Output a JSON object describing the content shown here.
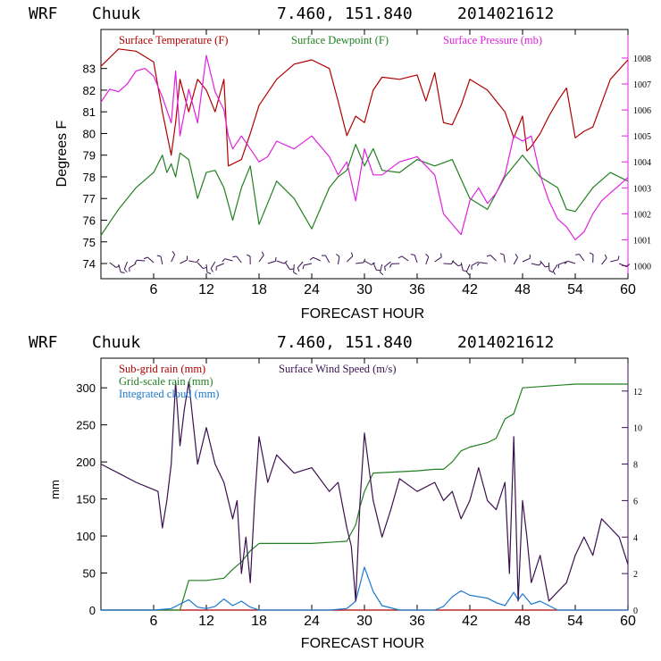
{
  "chart_data": [
    {
      "type": "line",
      "header": {
        "model": "WRF",
        "station": "Chuuk",
        "coords": "7.460, 151.840",
        "init": "2014021612"
      },
      "xlabel": "FORECAST HOUR",
      "ylabel": "Degrees F",
      "x_ticks": [
        "6",
        "12",
        "18",
        "24",
        "30",
        "36",
        "42",
        "48",
        "54",
        "60"
      ],
      "xlim": [
        0,
        60
      ],
      "ylim": [
        73.3,
        84.8
      ],
      "y_ticks": [
        "74",
        "75",
        "76",
        "77",
        "78",
        "79",
        "80",
        "81",
        "82",
        "83"
      ],
      "y2lim": [
        999.5,
        1009.1
      ],
      "y2_ticks": [
        "1000",
        "1001",
        "1002",
        "1003",
        "1004",
        "1005",
        "1006",
        "1007",
        "1008"
      ],
      "series": [
        {
          "name": "Surface Temperature (F)",
          "color": "#b00000",
          "axis": "left",
          "x": [
            0,
            2,
            4,
            6,
            7,
            8,
            8.5,
            9,
            10,
            11,
            12,
            13,
            14,
            14.5,
            15,
            16,
            17,
            18,
            20,
            22,
            24,
            26,
            27,
            28,
            29,
            30,
            31,
            32,
            34,
            36,
            37,
            38,
            39,
            40,
            41,
            42,
            44,
            46,
            47,
            48,
            48.5,
            49,
            50,
            51,
            52,
            53,
            54,
            55,
            56,
            58,
            60
          ],
          "y": [
            83.1,
            83.9,
            83.8,
            83.3,
            81,
            79,
            80.5,
            82.5,
            81,
            82.5,
            82,
            81,
            82.5,
            78.5,
            78.6,
            78.8,
            80,
            81.3,
            82.5,
            83.2,
            83.4,
            83,
            81.5,
            79.9,
            80.8,
            80.5,
            82,
            82.6,
            82.5,
            82.7,
            81.5,
            82.8,
            80.5,
            80.4,
            81.3,
            82.5,
            82,
            81,
            79.8,
            80.8,
            79.2,
            79.4,
            80,
            80.8,
            81.5,
            82.1,
            79.8,
            80.1,
            80.3,
            82.5,
            83.4
          ]
        },
        {
          "name": "Surface Dewpoint (F)",
          "color": "#208020",
          "axis": "left",
          "x": [
            0,
            2,
            4,
            6,
            7,
            7.5,
            8,
            8.5,
            9,
            10,
            11,
            12,
            13,
            14,
            15,
            16,
            17,
            18,
            20,
            22,
            24,
            26,
            27,
            28,
            29,
            30,
            31,
            32,
            34,
            36,
            38,
            40,
            42,
            44,
            46,
            48,
            50,
            52,
            53,
            54,
            56,
            58,
            60
          ],
          "y": [
            75.3,
            76.5,
            77.5,
            78.2,
            79,
            78.2,
            78.6,
            78,
            79.1,
            78.8,
            77,
            78.2,
            78.3,
            77.5,
            76,
            77.5,
            78.5,
            75.8,
            77.8,
            77,
            75.6,
            77.5,
            78,
            78.3,
            79.5,
            78.5,
            79.3,
            78.3,
            78.2,
            78.8,
            78.5,
            78.8,
            77,
            76.5,
            78,
            79,
            78,
            77.5,
            76.5,
            76.4,
            77.5,
            78.2,
            77.8
          ]
        },
        {
          "name": "Surface Pressure (mb)",
          "color": "#e020e0",
          "axis": "right",
          "x": [
            0,
            1,
            2,
            3,
            4,
            5,
            6,
            7,
            8,
            8.5,
            9,
            10,
            11,
            12,
            13,
            14,
            14.5,
            15,
            16,
            17,
            18,
            19,
            20,
            22,
            24,
            26,
            27,
            28,
            29,
            30,
            31,
            32,
            34,
            36,
            38,
            39,
            40,
            41,
            42,
            43,
            44,
            45,
            46,
            47,
            48,
            49,
            50,
            51,
            52,
            53,
            54,
            55,
            56,
            57,
            58,
            59,
            60
          ],
          "y": [
            1006.3,
            1006.8,
            1006.7,
            1007,
            1007.5,
            1007.6,
            1007.3,
            1006.5,
            1005.5,
            1007.5,
            1005,
            1006.8,
            1005.5,
            1008.1,
            1006.7,
            1006,
            1005,
            1004.5,
            1005,
            1004.5,
            1004,
            1004.2,
            1004.8,
            1004.5,
            1005,
            1004.2,
            1003.5,
            1004,
            1002.5,
            1004.5,
            1003.5,
            1003.5,
            1004,
            1004.2,
            1003.5,
            1002,
            1001.6,
            1001.2,
            1002.5,
            1003,
            1002.4,
            1002.8,
            1003.5,
            1005,
            1004.8,
            1005,
            1003.5,
            1002.5,
            1001.8,
            1001.5,
            1001,
            1001.3,
            1002,
            1002.5,
            1002.8,
            1003.1,
            1003.4
          ]
        }
      ],
      "wind_barbs_note": "wind barbs along bottom"
    },
    {
      "type": "line",
      "header": {
        "model": "WRF",
        "station": "Chuuk",
        "coords": "7.460, 151.840",
        "init": "2014021612"
      },
      "xlabel": "FORECAST HOUR",
      "ylabel": "mm",
      "x_ticks": [
        "6",
        "12",
        "18",
        "24",
        "30",
        "36",
        "42",
        "48",
        "54",
        "60"
      ],
      "xlim": [
        0,
        60
      ],
      "ylim": [
        0,
        340
      ],
      "y_ticks": [
        "0",
        "50",
        "100",
        "150",
        "200",
        "250",
        "300"
      ],
      "y2lim": [
        0,
        13.8
      ],
      "y2_ticks": [
        "0",
        "2",
        "4",
        "6",
        "8",
        "10",
        "12"
      ],
      "series": [
        {
          "name": "Sub-grid rain (mm)",
          "color": "#b00000",
          "axis": "left",
          "x": [
            0,
            60
          ],
          "y": [
            0,
            0
          ]
        },
        {
          "name": "Grid-scale rain (mm)",
          "color": "#208020",
          "axis": "left",
          "x": [
            0,
            8,
            9,
            9.5,
            10,
            12,
            14,
            15,
            16,
            17,
            18,
            24,
            28,
            29,
            29.5,
            30,
            31,
            36,
            38,
            39,
            40,
            41,
            42,
            44,
            45,
            46,
            47,
            48,
            54,
            60
          ],
          "y": [
            0,
            0,
            0,
            20,
            40,
            40,
            43,
            55,
            65,
            80,
            90,
            90,
            93,
            115,
            140,
            160,
            185,
            188,
            190,
            190,
            200,
            215,
            220,
            226,
            232,
            258,
            265,
            300,
            305,
            305
          ]
        },
        {
          "name": "Integrated cloud (mm)",
          "color": "#1878d0",
          "axis": "left",
          "x": [
            0,
            6,
            8,
            9,
            10,
            11,
            12,
            13,
            14,
            15,
            16,
            17,
            18,
            26,
            28,
            29,
            29.5,
            30,
            31,
            32,
            34,
            38,
            39,
            40,
            41,
            42,
            44,
            45,
            46,
            47,
            47.5,
            48,
            49,
            50,
            52,
            54,
            60
          ],
          "y": [
            0,
            0,
            2,
            8,
            14,
            4,
            2,
            5,
            15,
            6,
            12,
            4,
            0,
            0,
            2,
            12,
            35,
            58,
            25,
            6,
            0,
            0,
            5,
            18,
            26,
            20,
            16,
            10,
            6,
            24,
            14,
            22,
            8,
            12,
            0,
            0,
            0
          ]
        },
        {
          "name": "Surface Wind Speed (m/s)",
          "color": "#3a1050",
          "axis": "right",
          "x": [
            0,
            2,
            4,
            6,
            6.5,
            7,
            7.5,
            8,
            8.5,
            9,
            9.5,
            10,
            11,
            12,
            13,
            14,
            15,
            15.5,
            16,
            16.5,
            17,
            17.5,
            18,
            19,
            20,
            22,
            24,
            26,
            27,
            28,
            28.5,
            29,
            29.5,
            30,
            31,
            32,
            33,
            34,
            36,
            38,
            39,
            40,
            41,
            42,
            43,
            44,
            45,
            46,
            46.5,
            47,
            47.5,
            48,
            48.5,
            49,
            50,
            51,
            52,
            53,
            54,
            55,
            56,
            57,
            58,
            59,
            60
          ],
          "y": [
            8,
            7.5,
            7,
            6.6,
            6.5,
            4.5,
            6,
            8,
            12.5,
            9,
            11,
            12.5,
            8,
            10,
            8,
            7,
            5,
            6,
            2,
            4,
            1.5,
            6,
            9.5,
            7,
            8.5,
            7.5,
            7.8,
            6.5,
            7,
            4.5,
            3.5,
            0.5,
            6,
            9.7,
            6,
            4,
            5.5,
            7.2,
            6.5,
            7,
            6,
            6.5,
            5,
            6,
            7.8,
            6,
            5.5,
            7,
            2,
            9.5,
            0.5,
            6,
            4,
            1.5,
            3,
            0.5,
            1,
            1.5,
            3,
            4,
            3,
            5,
            4.5,
            4,
            2.5
          ]
        }
      ]
    }
  ]
}
